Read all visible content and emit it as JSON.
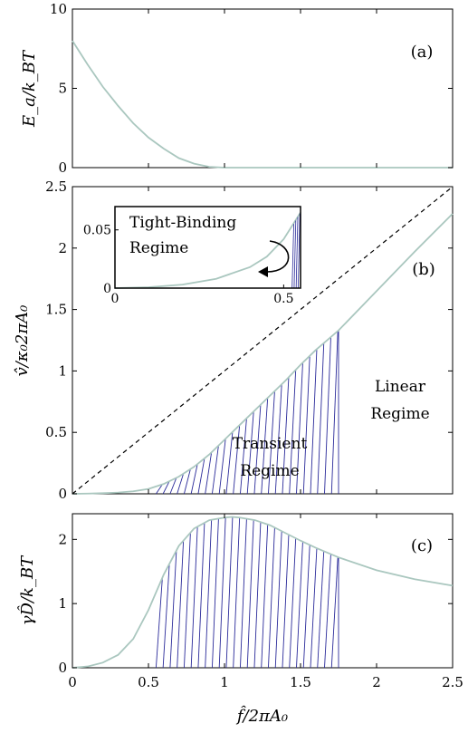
{
  "chart_data": [
    {
      "type": "line",
      "panel_label": "(a)",
      "ylabel": "E_a/k_BT",
      "xlim": [
        0,
        2.5
      ],
      "ylim": [
        0,
        10
      ],
      "yticks": [
        "0",
        "5",
        "10"
      ],
      "series": [
        {
          "x": [
            0,
            0.1,
            0.2,
            0.3,
            0.4,
            0.5,
            0.6,
            0.7,
            0.8,
            0.9,
            1.0,
            1.2,
            1.5,
            2.0,
            2.5
          ],
          "y": [
            8.0,
            6.5,
            5.1,
            3.9,
            2.8,
            1.9,
            1.2,
            0.6,
            0.25,
            0.05,
            0.0,
            0.0,
            0.0,
            0.0,
            0.0
          ],
          "color": "#aac7bf"
        }
      ]
    },
    {
      "type": "line",
      "panel_label": "(b)",
      "ylabel": "v̂/κ₀2πA₀",
      "xlim": [
        0,
        2.5
      ],
      "ylim": [
        0,
        2.5
      ],
      "yticks": [
        "0",
        "0.5",
        "1",
        "1.5",
        "2",
        "2.5"
      ],
      "series": [
        {
          "x": [
            0,
            0.1,
            0.2,
            0.3,
            0.4,
            0.5,
            0.6,
            0.7,
            0.8,
            0.9,
            1.0,
            1.1,
            1.2,
            1.3,
            1.4,
            1.5,
            1.6,
            1.75,
            2.0,
            2.25,
            2.5
          ],
          "y": [
            0,
            0.002,
            0.005,
            0.01,
            0.02,
            0.04,
            0.08,
            0.14,
            0.22,
            0.32,
            0.44,
            0.56,
            0.68,
            0.8,
            0.92,
            1.05,
            1.17,
            1.33,
            1.65,
            1.97,
            2.28
          ],
          "color": "#aac7bf"
        },
        {
          "x": [
            0,
            2.5
          ],
          "y": [
            0,
            2.5
          ],
          "style": "dashed",
          "color": "#000000"
        }
      ],
      "shaded_region": {
        "x_from": 0.55,
        "x_to": 1.75,
        "color": "#2b2b9a"
      },
      "annotations": [
        {
          "text": "Transient",
          "x": 1.22,
          "y": 0.38
        },
        {
          "text": "Regime",
          "x": 1.22,
          "y": 0.16
        },
        {
          "text": "Linear",
          "x": 2.28,
          "y": 0.75
        },
        {
          "text": "Regime",
          "x": 2.28,
          "y": 0.5
        }
      ],
      "inset": {
        "xlim": [
          0,
          0.55
        ],
        "ylim": [
          0,
          0.07
        ],
        "xticks": [
          "0",
          "0.5"
        ],
        "yticks": [
          "0",
          "0.05"
        ],
        "annotations": [
          "Tight-Binding",
          "Regime"
        ],
        "series": [
          {
            "x": [
              0,
              0.1,
              0.2,
              0.3,
              0.4,
              0.45,
              0.5,
              0.55
            ],
            "y": [
              0.0,
              0.0008,
              0.003,
              0.008,
              0.018,
              0.027,
              0.042,
              0.065
            ],
            "color": "#aac7bf"
          }
        ]
      }
    },
    {
      "type": "line",
      "panel_label": "(c)",
      "ylabel": "γD̂/k_BT",
      "xlabel": "f̂/2πA₀",
      "xlim": [
        0,
        2.5
      ],
      "ylim": [
        0,
        2.4
      ],
      "yticks": [
        "0",
        "1",
        "2"
      ],
      "xticks": [
        "0",
        "0.5",
        "1",
        "1.5",
        "2",
        "2.5"
      ],
      "series": [
        {
          "x": [
            0,
            0.1,
            0.2,
            0.3,
            0.4,
            0.5,
            0.6,
            0.7,
            0.8,
            0.9,
            1.0,
            1.05,
            1.1,
            1.2,
            1.3,
            1.4,
            1.5,
            1.6,
            1.75,
            2.0,
            2.25,
            2.5
          ],
          "y": [
            0.0,
            0.02,
            0.08,
            0.2,
            0.45,
            0.9,
            1.45,
            1.9,
            2.17,
            2.3,
            2.34,
            2.35,
            2.34,
            2.3,
            2.22,
            2.1,
            1.98,
            1.87,
            1.72,
            1.52,
            1.38,
            1.28
          ],
          "color": "#aac7bf"
        }
      ],
      "shaded_region": {
        "x_from": 0.55,
        "x_to": 1.75,
        "color": "#2b2b9a"
      }
    }
  ]
}
